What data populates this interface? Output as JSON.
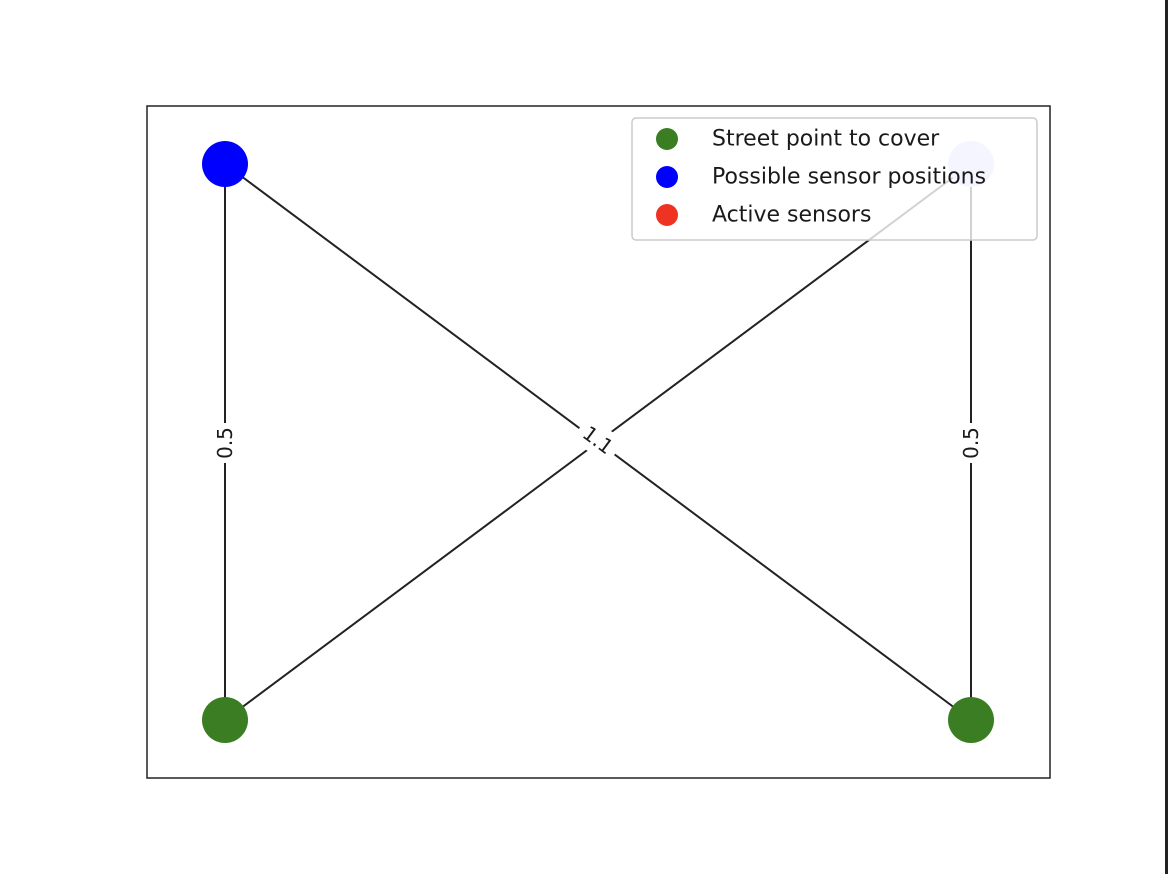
{
  "colors": {
    "street_point": "#3a7d22",
    "possible_sensor": "#0000ff",
    "faded_sensor": "#ccccff",
    "active_sensor": "#ee3322",
    "edge": "#222222"
  },
  "graph": {
    "nodes": [
      {
        "id": "top-left",
        "kind": "possible_sensor"
      },
      {
        "id": "top-right",
        "kind": "faded_sensor"
      },
      {
        "id": "bottom-left",
        "kind": "street_point"
      },
      {
        "id": "bottom-right",
        "kind": "street_point"
      }
    ],
    "edges": [
      {
        "from": "top-left",
        "to": "bottom-left",
        "label": "0.5"
      },
      {
        "from": "top-right",
        "to": "bottom-right",
        "label": "0.5"
      },
      {
        "from": "top-left",
        "to": "bottom-right",
        "label": "1.1"
      },
      {
        "from": "top-right",
        "to": "bottom-left",
        "label": ""
      }
    ]
  },
  "legend": {
    "items": [
      {
        "label": "Street point to cover",
        "color_key": "street_point"
      },
      {
        "label": "Possible sensor positions",
        "color_key": "possible_sensor"
      },
      {
        "label": "Active sensors",
        "color_key": "active_sensor"
      }
    ]
  }
}
